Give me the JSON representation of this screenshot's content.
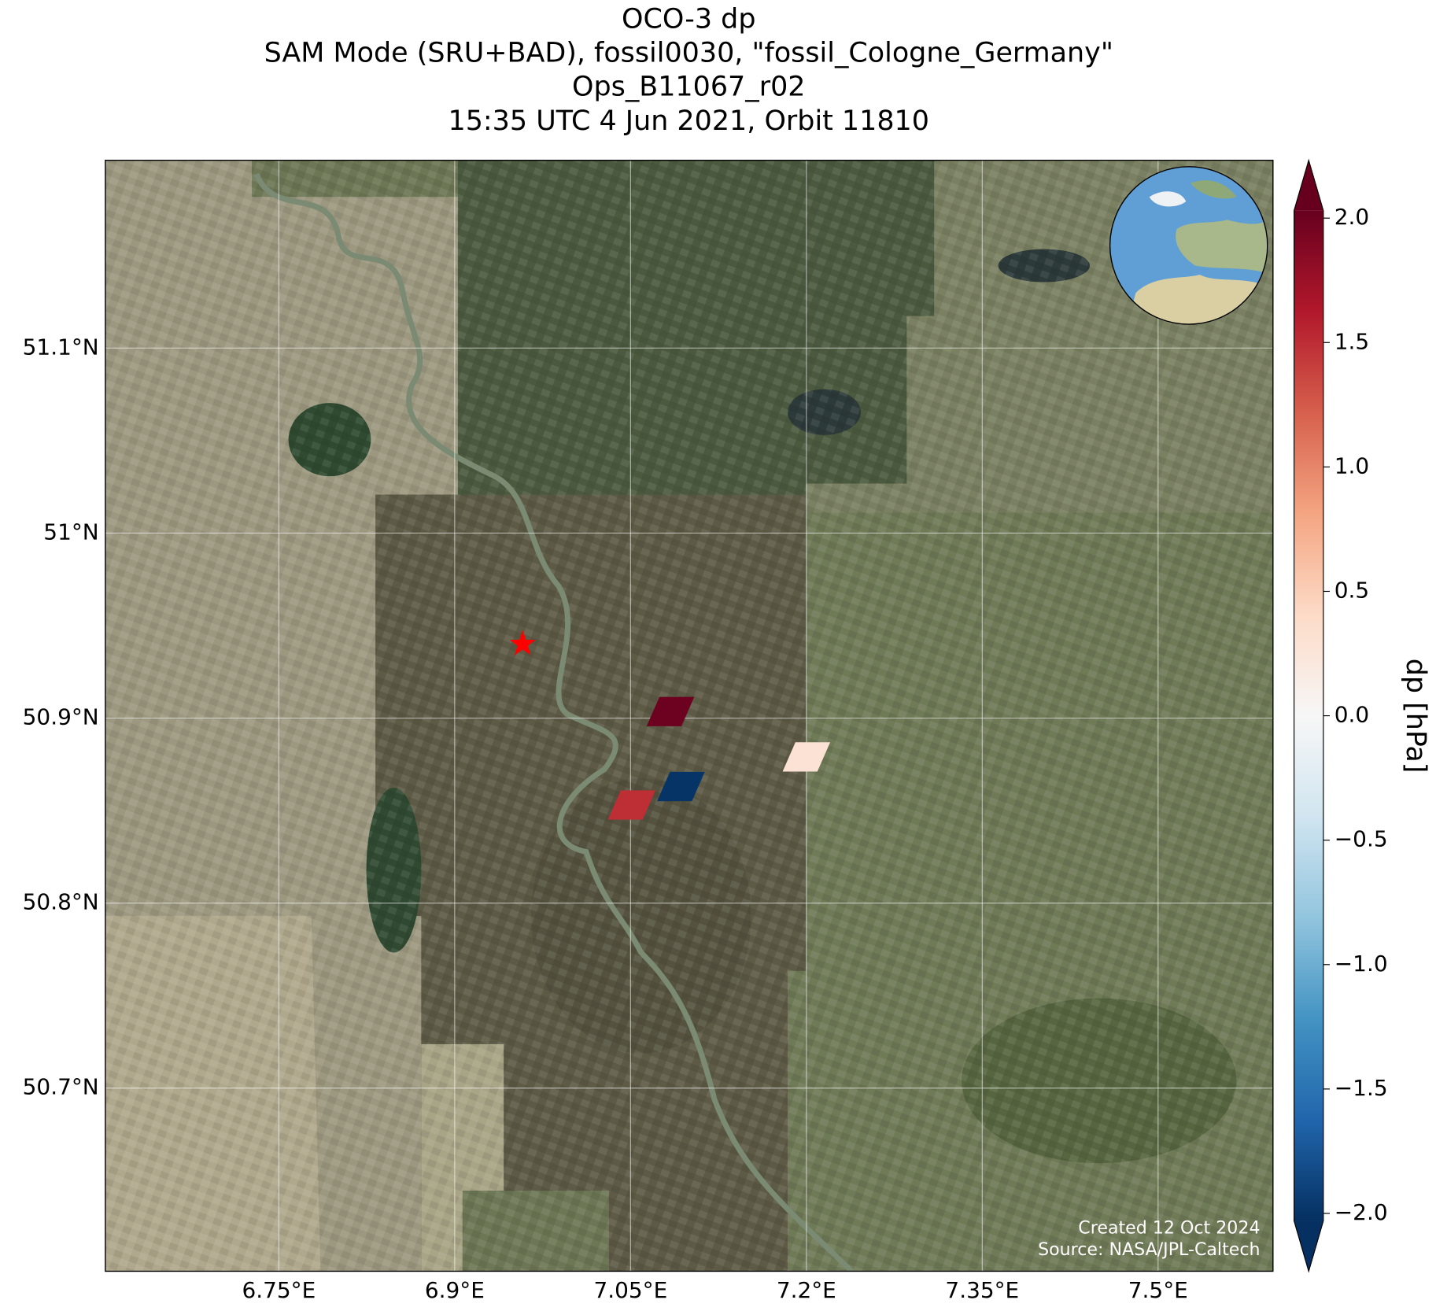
{
  "chart_data": {
    "type": "footprint-map",
    "title": [
      "OCO-3 dp",
      "SAM Mode (SRU+BAD), fossil0030, \"fossil_Cologne_Germany\"",
      "Ops_B11067_r02",
      "15:35 UTC 4 Jun 2021, Orbit 11810"
    ],
    "xlim": [
      6.602,
      7.598
    ],
    "ylim": [
      50.601,
      51.2015
    ],
    "xticks": [
      {
        "value": 6.75,
        "label": "6.75°E"
      },
      {
        "value": 6.9,
        "label": "6.9°E"
      },
      {
        "value": 7.05,
        "label": "7.05°E"
      },
      {
        "value": 7.2,
        "label": "7.2°E"
      },
      {
        "value": 7.35,
        "label": "7.35°E"
      },
      {
        "value": 7.5,
        "label": "7.5°E"
      }
    ],
    "yticks": [
      {
        "value": 50.7,
        "label": "50.7°N"
      },
      {
        "value": 50.8,
        "label": "50.8°N"
      },
      {
        "value": 50.9,
        "label": "50.9°N"
      },
      {
        "value": 51.0,
        "label": "51°N"
      },
      {
        "value": 51.1,
        "label": "51.1°N"
      }
    ],
    "grid": true,
    "site": {
      "lon": 6.958,
      "lat": 50.94,
      "color": "#ff0000"
    },
    "footprints": [
      {
        "lon": 7.084,
        "lat": 50.9035,
        "value": 2.0
      },
      {
        "lon": 7.2,
        "lat": 50.879,
        "value": 0.3
      },
      {
        "lon": 7.093,
        "lat": 50.863,
        "value": -2.0
      },
      {
        "lon": 7.051,
        "lat": 50.853,
        "value": 1.5
      }
    ],
    "colorbar": {
      "label": "dp [hPa]",
      "clim": [
        -2.03,
        2.03
      ],
      "extend": "both",
      "colors": [
        "#053061",
        "#2166ac",
        "#4393c3",
        "#92c5de",
        "#d1e5f0",
        "#f7f7f7",
        "#fddbc7",
        "#f4a582",
        "#d6604d",
        "#b2182b",
        "#67001f"
      ],
      "ticks": [
        {
          "value": -2.0,
          "label": "−2.0"
        },
        {
          "value": -1.5,
          "label": "−1.5"
        },
        {
          "value": -1.0,
          "label": "−1.0"
        },
        {
          "value": -0.5,
          "label": "−0.5"
        },
        {
          "value": 0.0,
          "label": "0.0"
        },
        {
          "value": 0.5,
          "label": "0.5"
        },
        {
          "value": 1.0,
          "label": "1.0"
        },
        {
          "value": 1.5,
          "label": "1.5"
        },
        {
          "value": 2.0,
          "label": "2.0"
        }
      ]
    },
    "credits": [
      "Created 12 Oct 2024",
      "Source: NASA/JPL-Caltech"
    ]
  }
}
